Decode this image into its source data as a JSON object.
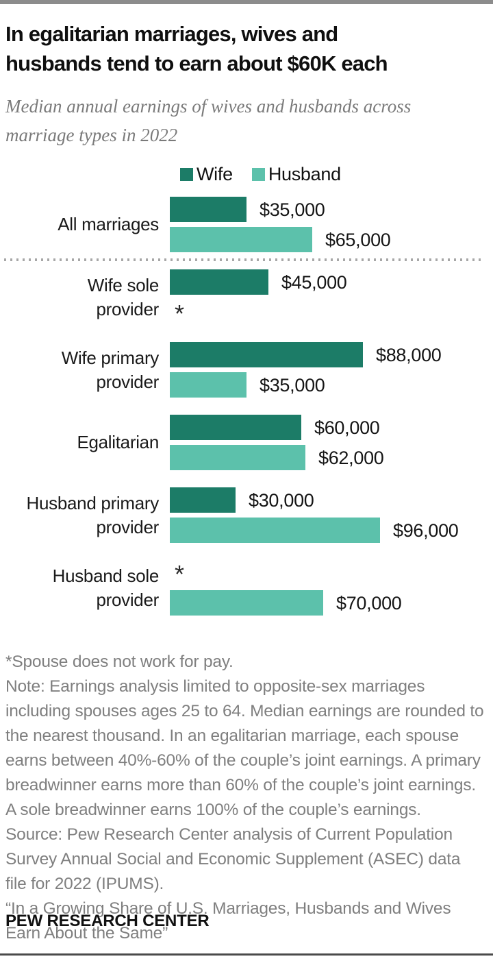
{
  "header": {
    "title_line1": "In egalitarian marriages, wives and",
    "title_line2": "husbands tend to earn about $60K each",
    "subtitle": "Median annual earnings of wives and husbands across marriage types in 2022"
  },
  "legend": {
    "wife_label": "Wife",
    "husband_label": "Husband"
  },
  "colors": {
    "wife": "#1c7c67",
    "husband": "#5cc1ab"
  },
  "chart_data": {
    "type": "bar",
    "orientation": "horizontal",
    "title": "Median annual earnings of wives and husbands across marriage types in 2022",
    "series_names": [
      "Wife",
      "Husband"
    ],
    "unit": "USD",
    "x_max": 100000,
    "no_earnings_marker": "*",
    "categories": [
      "All marriages",
      "Wife sole provider",
      "Wife primary provider",
      "Egalitarian",
      "Husband primary provider",
      "Husband sole provider"
    ],
    "groups": [
      {
        "label_lines": [
          "All marriages"
        ],
        "wife": 35000,
        "husband": 65000,
        "wife_display": "$35,000",
        "husband_display": "$65,000",
        "divider_after": true
      },
      {
        "label_lines": [
          "Wife sole",
          "provider"
        ],
        "wife": 45000,
        "husband": null,
        "wife_display": "$45,000",
        "husband_display": "*",
        "divider_after": false
      },
      {
        "label_lines": [
          "Wife primary",
          "provider"
        ],
        "wife": 88000,
        "husband": 35000,
        "wife_display": "$88,000",
        "husband_display": "$35,000",
        "divider_after": false
      },
      {
        "label_lines": [
          "Egalitarian"
        ],
        "wife": 60000,
        "husband": 62000,
        "wife_display": "$60,000",
        "husband_display": "$62,000",
        "divider_after": false
      },
      {
        "label_lines": [
          "Husband primary",
          "provider"
        ],
        "wife": 30000,
        "husband": 96000,
        "wife_display": "$30,000",
        "husband_display": "$96,000",
        "divider_after": false
      },
      {
        "label_lines": [
          "Husband sole",
          "provider"
        ],
        "wife": null,
        "husband": 70000,
        "wife_display": "*",
        "husband_display": "$70,000",
        "divider_after": false
      }
    ]
  },
  "notes": {
    "footnote": "*Spouse does not work for pay.",
    "note": "Note: Earnings analysis limited to opposite-sex marriages including spouses ages 25 to 64. Median earnings are rounded to the nearest thousand. In an egalitarian marriage, each spouse earns between 40%-60% of the couple’s joint earnings. A primary breadwinner earns more than 60% of the couple’s joint earnings. A sole breadwinner earns 100% of the couple’s earnings.",
    "source": "Source: Pew Research Center analysis of Current Population Survey Annual Social and Economic Supplement (ASEC) data file for 2022 (IPUMS).",
    "report_title": "“In a Growing Share of U.S. Marriages, Husbands and Wives Earn About the Same”"
  },
  "footer": {
    "brand": "PEW RESEARCH CENTER"
  }
}
